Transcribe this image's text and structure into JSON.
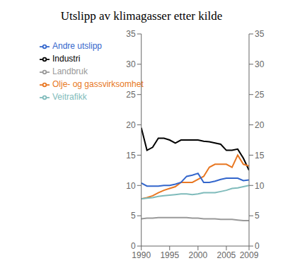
{
  "chart_data": {
    "type": "line",
    "title": "Utslipp av klimagasser etter kilde",
    "x": [
      1990,
      1991,
      1992,
      1993,
      1994,
      1995,
      1996,
      1997,
      1998,
      1999,
      2000,
      2001,
      2002,
      2003,
      2004,
      2005,
      2006,
      2007,
      2008,
      2009
    ],
    "series": [
      {
        "name": "Industri",
        "color": "#000000",
        "values": [
          19.5,
          15.8,
          16.3,
          17.8,
          17.8,
          17.5,
          17.0,
          17.5,
          17.5,
          17.5,
          17.5,
          17.3,
          17.2,
          17.0,
          16.8,
          15.8,
          15.8,
          16.0,
          14.5,
          12.5
        ]
      },
      {
        "name": "Olje- og gassvirksomhet",
        "color": "#E87722",
        "values": [
          7.8,
          8.0,
          8.3,
          8.8,
          9.2,
          9.5,
          9.8,
          10.5,
          10.5,
          10.5,
          11.0,
          11.5,
          13.0,
          13.5,
          13.5,
          13.5,
          13.0,
          15.0,
          13.5,
          13.2
        ]
      },
      {
        "name": "Veitrafikk",
        "color": "#7FBBBB",
        "values": [
          7.8,
          7.9,
          8.0,
          8.2,
          8.3,
          8.4,
          8.5,
          8.6,
          8.6,
          8.5,
          8.6,
          8.8,
          8.8,
          8.8,
          9.0,
          9.2,
          9.5,
          9.6,
          9.8,
          10.0
        ]
      },
      {
        "name": "Landbruk",
        "color": "#999999",
        "values": [
          4.5,
          4.6,
          4.6,
          4.7,
          4.7,
          4.7,
          4.7,
          4.7,
          4.7,
          4.6,
          4.6,
          4.5,
          4.5,
          4.5,
          4.4,
          4.4,
          4.4,
          4.3,
          4.2,
          4.2
        ]
      },
      {
        "name": "Andre utslipp",
        "color": "#3366CC",
        "values": [
          10.4,
          9.9,
          9.9,
          9.9,
          10.0,
          10.0,
          10.2,
          10.5,
          11.5,
          11.7,
          12.0,
          10.5,
          10.5,
          10.7,
          11.0,
          11.2,
          11.2,
          11.2,
          10.8,
          10.9
        ]
      }
    ],
    "xlim": [
      1990,
      2009
    ],
    "xticks": [
      1990,
      1995,
      2000,
      2005,
      2009
    ],
    "ylim": [
      0,
      35
    ],
    "yticks": [
      0,
      5,
      10,
      15,
      20,
      25,
      30,
      35
    ],
    "y2lim": [
      0,
      35
    ],
    "y2ticks": [
      0,
      5,
      10,
      15,
      20,
      25,
      30,
      35
    ],
    "legend": "upper left",
    "grid": false
  }
}
